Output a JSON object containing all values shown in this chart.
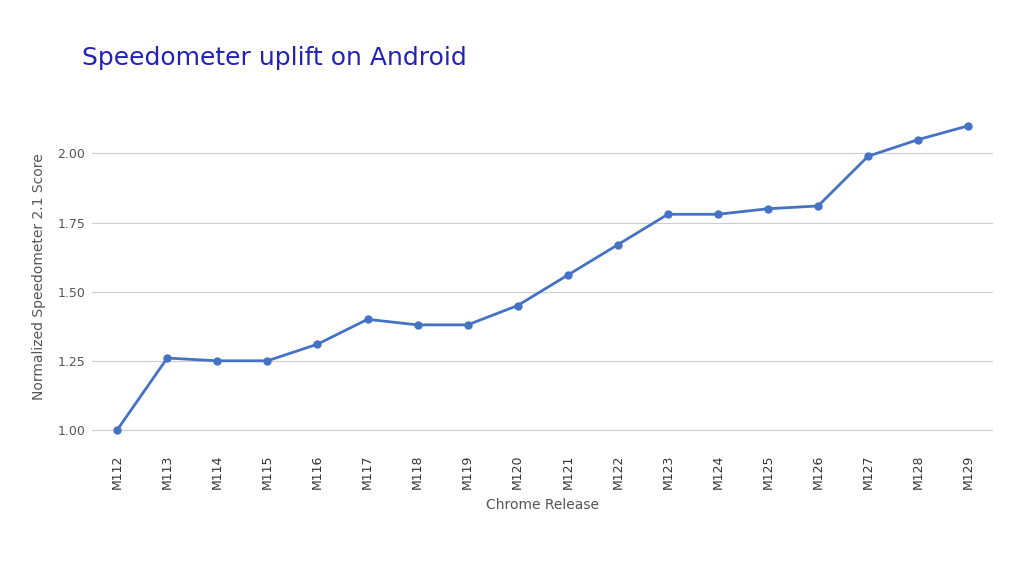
{
  "title": "Speedometer uplift on Android",
  "xlabel": "Chrome Release",
  "ylabel": "Normalized Speedometer 2.1 Score",
  "x_labels": [
    "M112",
    "M113",
    "M114",
    "M115",
    "M116",
    "M117",
    "M118",
    "M119",
    "M120",
    "M121",
    "M122",
    "M123",
    "M124",
    "M125",
    "M126",
    "M127",
    "M128",
    "M129"
  ],
  "y_values": [
    1.0,
    1.26,
    1.25,
    1.25,
    1.31,
    1.4,
    1.38,
    1.38,
    1.45,
    1.56,
    1.67,
    1.78,
    1.78,
    1.8,
    1.81,
    1.99,
    2.05,
    2.1
  ],
  "line_color": "#4472C4",
  "marker_color": "#4472C4",
  "title_color": "#2222BB",
  "background_color": "#FFFFFF",
  "grid_color": "#CCCCCC",
  "ylim": [
    0.93,
    2.18
  ],
  "yticks": [
    1.0,
    1.25,
    1.5,
    1.75,
    2.0
  ],
  "title_fontsize": 18,
  "label_fontsize": 10,
  "tick_fontsize": 9,
  "line_width": 2.0,
  "marker_size": 5
}
